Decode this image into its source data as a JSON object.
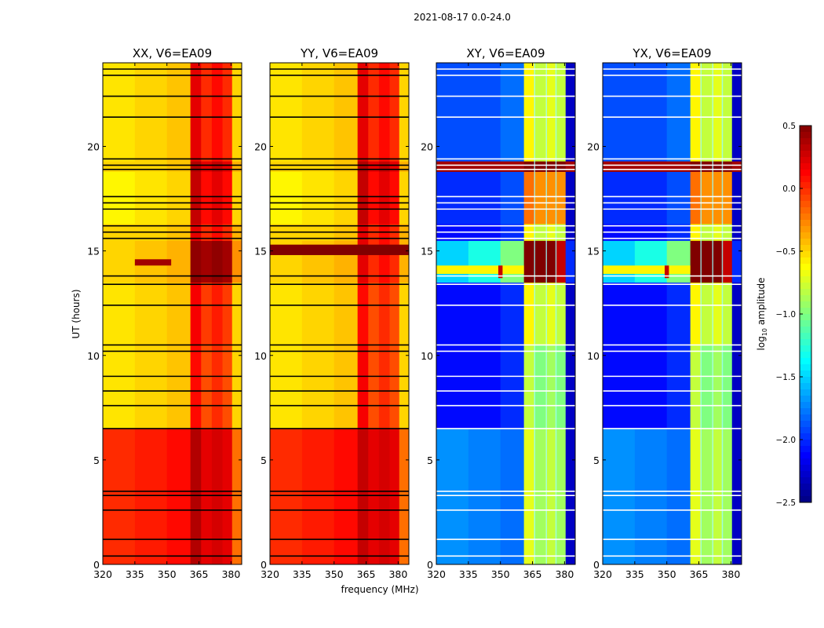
{
  "chart_data": {
    "type": "heatmap",
    "title": "2021-08-17 0.0-24.0",
    "xlabel": "frequency (MHz)",
    "ylabel": "UT (hours)",
    "xlim": [
      320,
      385
    ],
    "ylim": [
      0,
      24
    ],
    "xticks": [
      320,
      335,
      350,
      365,
      380
    ],
    "yticks": [
      0,
      5,
      10,
      15,
      20
    ],
    "colormap": "jet",
    "colorbar": {
      "label_main": "log",
      "label_sub": "10",
      "label_rest": " amplitude",
      "range": [
        -2.5,
        0.5
      ],
      "ticks": [
        0.5,
        0.0,
        -0.5,
        -1.0,
        -1.5,
        -2.0,
        -2.5
      ],
      "tick_labels": [
        "0.5",
        "0.0",
        "−0.5",
        "−1.0",
        "−1.5",
        "−2.0",
        "−2.5"
      ]
    },
    "freq_bin_edges": [
      320,
      335,
      350,
      361,
      366,
      371,
      376,
      380.5,
      385
    ],
    "time_bin_edges": [
      0,
      6.5,
      10.5,
      13.5,
      15.5,
      16.3,
      18.8,
      19.3,
      24
    ],
    "panels": [
      {
        "title": "XX, V6=EA09",
        "pol": "parallel",
        "values": [
          [
            0.0,
            0.05,
            0.1,
            0.35,
            0.2,
            0.25,
            0.2,
            -0.2
          ],
          [
            -0.55,
            -0.5,
            -0.45,
            0.1,
            -0.1,
            0.0,
            -0.1,
            -0.5
          ],
          [
            -0.55,
            -0.5,
            -0.45,
            0.15,
            -0.05,
            0.05,
            -0.05,
            -0.5
          ],
          [
            -0.5,
            -0.45,
            -0.4,
            0.45,
            0.4,
            0.45,
            0.4,
            -0.3
          ],
          [
            -0.5,
            -0.5,
            -0.45,
            0.2,
            0.0,
            0.1,
            0.0,
            -0.4
          ],
          [
            -0.6,
            -0.55,
            -0.5,
            0.3,
            0.1,
            0.2,
            0.1,
            -0.5
          ],
          [
            -0.5,
            -0.5,
            -0.45,
            0.35,
            0.2,
            0.3,
            0.2,
            -0.4
          ],
          [
            -0.55,
            -0.5,
            -0.45,
            0.2,
            0.0,
            0.1,
            0.0,
            -0.5
          ]
        ],
        "stripes": [
          [
            14.3,
            14.6,
            335,
            352,
            0.4
          ]
        ]
      },
      {
        "title": "YY, V6=EA09",
        "pol": "parallel",
        "values": [
          [
            0.0,
            0.05,
            0.1,
            0.3,
            0.2,
            0.25,
            0.2,
            -0.2
          ],
          [
            -0.55,
            -0.5,
            -0.45,
            0.15,
            -0.1,
            0.0,
            -0.1,
            -0.5
          ],
          [
            -0.55,
            -0.5,
            -0.45,
            0.1,
            -0.1,
            0.0,
            -0.1,
            -0.5
          ],
          [
            -0.5,
            -0.45,
            -0.4,
            0.2,
            0.0,
            0.1,
            0.0,
            -0.4
          ],
          [
            -0.5,
            -0.5,
            -0.45,
            0.2,
            0.0,
            0.1,
            0.0,
            -0.4
          ],
          [
            -0.6,
            -0.55,
            -0.5,
            0.3,
            0.1,
            0.2,
            0.1,
            -0.5
          ],
          [
            -0.5,
            -0.5,
            -0.45,
            0.35,
            0.2,
            0.3,
            0.2,
            -0.4
          ],
          [
            -0.55,
            -0.5,
            -0.45,
            0.2,
            0.0,
            0.1,
            0.0,
            -0.5
          ]
        ],
        "stripes": [
          [
            14.8,
            15.3,
            320,
            385,
            0.5
          ]
        ]
      },
      {
        "title": "XY, V6=EA09",
        "pol": "cross",
        "values": [
          [
            -1.7,
            -1.75,
            -1.8,
            -0.7,
            -0.9,
            -0.8,
            -0.9,
            -2.3
          ],
          [
            -2.1,
            -2.1,
            -2.0,
            -0.8,
            -1.0,
            -0.9,
            -1.0,
            -2.3
          ],
          [
            -2.1,
            -2.1,
            -2.0,
            -0.6,
            -0.8,
            -0.7,
            -0.8,
            -2.3
          ],
          [
            -1.5,
            -1.3,
            -1.0,
            0.5,
            0.5,
            0.5,
            0.3,
            -2.0
          ],
          [
            -2.1,
            -2.1,
            -2.0,
            -0.6,
            -0.8,
            -0.7,
            -0.8,
            -2.3
          ],
          [
            -2.0,
            -2.0,
            -1.9,
            -0.2,
            -0.3,
            -0.3,
            -0.3,
            -2.3
          ],
          [
            0.4,
            0.4,
            0.4,
            0.5,
            0.5,
            0.5,
            0.5,
            0.4
          ],
          [
            -1.9,
            -1.9,
            -1.8,
            -0.6,
            -0.8,
            -0.7,
            -0.8,
            -2.3
          ]
        ],
        "stripes": [
          [
            13.9,
            14.3,
            320,
            361,
            -0.6
          ],
          [
            13.7,
            14.3,
            349,
            351,
            0.3
          ]
        ]
      },
      {
        "title": "YX, V6=EA09",
        "pol": "cross",
        "values": [
          [
            -1.7,
            -1.75,
            -1.8,
            -0.7,
            -0.9,
            -0.8,
            -0.9,
            -2.3
          ],
          [
            -2.1,
            -2.1,
            -2.0,
            -0.8,
            -1.0,
            -0.9,
            -1.0,
            -2.3
          ],
          [
            -2.1,
            -2.1,
            -2.0,
            -0.6,
            -0.8,
            -0.7,
            -0.8,
            -2.3
          ],
          [
            -1.5,
            -1.3,
            -1.0,
            0.5,
            0.5,
            0.5,
            0.3,
            -2.0
          ],
          [
            -2.1,
            -2.1,
            -2.0,
            -0.6,
            -0.8,
            -0.7,
            -0.8,
            -2.3
          ],
          [
            -2.0,
            -2.0,
            -1.9,
            -0.2,
            -0.3,
            -0.3,
            -0.3,
            -2.3
          ],
          [
            0.4,
            0.4,
            0.4,
            0.5,
            0.5,
            0.5,
            0.5,
            0.4
          ],
          [
            -1.9,
            -1.9,
            -1.8,
            -0.6,
            -0.8,
            -0.7,
            -0.8,
            -2.3
          ]
        ],
        "stripes": [
          [
            13.9,
            14.3,
            320,
            361,
            -0.6
          ],
          [
            13.7,
            14.3,
            349,
            351,
            0.3
          ]
        ]
      }
    ],
    "flagged_channels_mhz": [
      366,
      371.5,
      376
    ],
    "flagged_times_ut": [
      23.7,
      23.4,
      22.4,
      21.4,
      19.4,
      19.1,
      18.9,
      17.6,
      17.3,
      17.0,
      16.2,
      15.9,
      15.6,
      13.8,
      13.4,
      12.4,
      10.5,
      10.2,
      9.0,
      8.3,
      7.6,
      6.5,
      3.5,
      3.3,
      2.6,
      1.2,
      0.4
    ]
  }
}
